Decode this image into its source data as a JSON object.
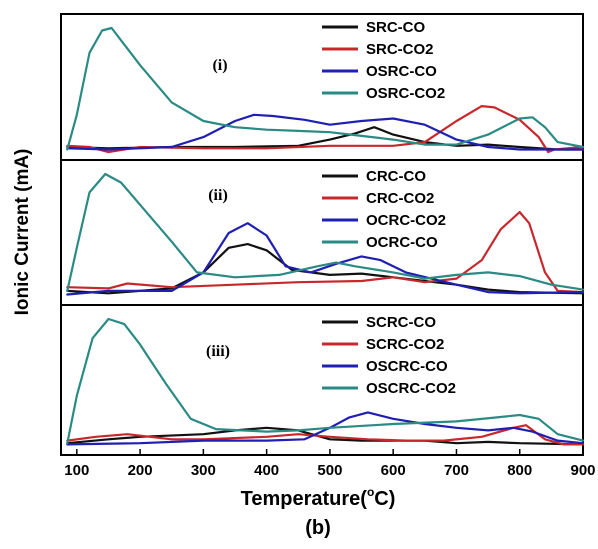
{
  "figure": {
    "ylabel": "Ionic Current (mA)",
    "xlabel_main": "Temperature(",
    "xlabel_sup": "o",
    "xlabel_end": "C)",
    "caption": "(b)"
  },
  "chart_data": {
    "type": "line",
    "xlim": [
      75,
      900
    ],
    "xticks": [
      100,
      200,
      300,
      400,
      500,
      600,
      700,
      800,
      900
    ],
    "colors": {
      "black": "#111111",
      "red": "#c8282b",
      "blue": "#1f1fb4",
      "teal": "#2a8a84"
    },
    "panels": [
      {
        "label": "(i)",
        "series": [
          {
            "name": "SRC-CO",
            "color": "black",
            "points": [
              [
                85,
                0.04
              ],
              [
                150,
                0.03
              ],
              [
                250,
                0.04
              ],
              [
                350,
                0.04
              ],
              [
                450,
                0.05
              ],
              [
                500,
                0.1
              ],
              [
                540,
                0.15
              ],
              [
                570,
                0.2
              ],
              [
                600,
                0.14
              ],
              [
                650,
                0.08
              ],
              [
                700,
                0.05
              ],
              [
                750,
                0.06
              ],
              [
                800,
                0.04
              ],
              [
                860,
                0.02
              ],
              [
                900,
                0.02
              ]
            ]
          },
          {
            "name": "SRC-CO2",
            "color": "red",
            "points": [
              [
                85,
                0.05
              ],
              [
                120,
                0.04
              ],
              [
                150,
                0.0
              ],
              [
                200,
                0.04
              ],
              [
                300,
                0.03
              ],
              [
                400,
                0.03
              ],
              [
                500,
                0.05
              ],
              [
                600,
                0.05
              ],
              [
                650,
                0.08
              ],
              [
                700,
                0.25
              ],
              [
                740,
                0.37
              ],
              [
                760,
                0.36
              ],
              [
                800,
                0.26
              ],
              [
                830,
                0.12
              ],
              [
                845,
                0.0
              ],
              [
                855,
                0.02
              ],
              [
                900,
                0.04
              ]
            ]
          },
          {
            "name": "OSRC-CO",
            "color": "blue",
            "points": [
              [
                85,
                0.03
              ],
              [
                150,
                0.02
              ],
              [
                250,
                0.04
              ],
              [
                300,
                0.12
              ],
              [
                350,
                0.25
              ],
              [
                380,
                0.3
              ],
              [
                410,
                0.29
              ],
              [
                460,
                0.26
              ],
              [
                500,
                0.22
              ],
              [
                550,
                0.25
              ],
              [
                600,
                0.27
              ],
              [
                650,
                0.22
              ],
              [
                700,
                0.1
              ],
              [
                750,
                0.04
              ],
              [
                800,
                0.02
              ],
              [
                900,
                0.02
              ]
            ]
          },
          {
            "name": "OSRC-CO2",
            "color": "teal",
            "points": [
              [
                85,
                0.02
              ],
              [
                100,
                0.3
              ],
              [
                120,
                0.8
              ],
              [
                140,
                0.98
              ],
              [
                155,
                1.0
              ],
              [
                170,
                0.9
              ],
              [
                200,
                0.7
              ],
              [
                250,
                0.4
              ],
              [
                300,
                0.25
              ],
              [
                350,
                0.2
              ],
              [
                400,
                0.18
              ],
              [
                450,
                0.17
              ],
              [
                500,
                0.16
              ],
              [
                550,
                0.13
              ],
              [
                600,
                0.1
              ],
              [
                650,
                0.06
              ],
              [
                700,
                0.06
              ],
              [
                750,
                0.14
              ],
              [
                800,
                0.27
              ],
              [
                820,
                0.28
              ],
              [
                840,
                0.2
              ],
              [
                860,
                0.08
              ],
              [
                900,
                0.04
              ]
            ]
          }
        ]
      },
      {
        "label": "(ii)",
        "series": [
          {
            "name": "CRC-CO",
            "color": "black",
            "points": [
              [
                85,
                0.05
              ],
              [
                150,
                0.03
              ],
              [
                250,
                0.07
              ],
              [
                300,
                0.2
              ],
              [
                340,
                0.4
              ],
              [
                370,
                0.43
              ],
              [
                400,
                0.38
              ],
              [
                440,
                0.22
              ],
              [
                500,
                0.18
              ],
              [
                550,
                0.19
              ],
              [
                600,
                0.16
              ],
              [
                650,
                0.13
              ],
              [
                700,
                0.1
              ],
              [
                750,
                0.06
              ],
              [
                800,
                0.04
              ],
              [
                900,
                0.03
              ]
            ]
          },
          {
            "name": "CRC-CO2",
            "color": "red",
            "points": [
              [
                85,
                0.08
              ],
              [
                150,
                0.07
              ],
              [
                180,
                0.11
              ],
              [
                250,
                0.08
              ],
              [
                350,
                0.1
              ],
              [
                450,
                0.12
              ],
              [
                550,
                0.13
              ],
              [
                600,
                0.16
              ],
              [
                650,
                0.12
              ],
              [
                700,
                0.15
              ],
              [
                740,
                0.3
              ],
              [
                770,
                0.55
              ],
              [
                800,
                0.69
              ],
              [
                815,
                0.6
              ],
              [
                840,
                0.2
              ],
              [
                860,
                0.05
              ],
              [
                900,
                0.04
              ]
            ]
          },
          {
            "name": "OCRC-CO2",
            "color": "blue",
            "points": [
              [
                85,
                0.02
              ],
              [
                150,
                0.05
              ],
              [
                250,
                0.05
              ],
              [
                300,
                0.2
              ],
              [
                340,
                0.52
              ],
              [
                370,
                0.6
              ],
              [
                400,
                0.5
              ],
              [
                430,
                0.25
              ],
              [
                470,
                0.2
              ],
              [
                510,
                0.27
              ],
              [
                550,
                0.33
              ],
              [
                580,
                0.3
              ],
              [
                620,
                0.2
              ],
              [
                700,
                0.1
              ],
              [
                750,
                0.04
              ],
              [
                800,
                0.03
              ],
              [
                900,
                0.04
              ]
            ]
          },
          {
            "name": "OCRC-CO",
            "color": "teal",
            "points": [
              [
                85,
                0.05
              ],
              [
                100,
                0.4
              ],
              [
                120,
                0.85
              ],
              [
                145,
                1.0
              ],
              [
                170,
                0.93
              ],
              [
                200,
                0.75
              ],
              [
                250,
                0.45
              ],
              [
                290,
                0.2
              ],
              [
                350,
                0.16
              ],
              [
                420,
                0.18
              ],
              [
                480,
                0.25
              ],
              [
                510,
                0.28
              ],
              [
                540,
                0.25
              ],
              [
                600,
                0.2
              ],
              [
                650,
                0.15
              ],
              [
                700,
                0.18
              ],
              [
                750,
                0.2
              ],
              [
                800,
                0.17
              ],
              [
                850,
                0.1
              ],
              [
                900,
                0.06
              ]
            ]
          }
        ]
      },
      {
        "label": "(iii)",
        "series": [
          {
            "name": "SCRC-CO",
            "color": "black",
            "points": [
              [
                85,
                0.03
              ],
              [
                150,
                0.06
              ],
              [
                200,
                0.08
              ],
              [
                300,
                0.1
              ],
              [
                350,
                0.13
              ],
              [
                400,
                0.15
              ],
              [
                450,
                0.13
              ],
              [
                500,
                0.06
              ],
              [
                550,
                0.05
              ],
              [
                600,
                0.05
              ],
              [
                650,
                0.05
              ],
              [
                700,
                0.03
              ],
              [
                750,
                0.04
              ],
              [
                800,
                0.03
              ],
              [
                900,
                0.02
              ]
            ]
          },
          {
            "name": "SCRC-CO2",
            "color": "red",
            "points": [
              [
                85,
                0.05
              ],
              [
                130,
                0.08
              ],
              [
                180,
                0.1
              ],
              [
                250,
                0.06
              ],
              [
                300,
                0.06
              ],
              [
                400,
                0.08
              ],
              [
                450,
                0.1
              ],
              [
                500,
                0.08
              ],
              [
                560,
                0.06
              ],
              [
                620,
                0.05
              ],
              [
                680,
                0.05
              ],
              [
                740,
                0.08
              ],
              [
                790,
                0.15
              ],
              [
                810,
                0.17
              ],
              [
                840,
                0.06
              ],
              [
                870,
                0.02
              ],
              [
                900,
                0.02
              ]
            ]
          },
          {
            "name": "OSCRC-CO",
            "color": "blue",
            "points": [
              [
                85,
                0.02
              ],
              [
                200,
                0.03
              ],
              [
                300,
                0.05
              ],
              [
                400,
                0.05
              ],
              [
                460,
                0.06
              ],
              [
                500,
                0.15
              ],
              [
                530,
                0.23
              ],
              [
                560,
                0.27
              ],
              [
                600,
                0.22
              ],
              [
                650,
                0.18
              ],
              [
                700,
                0.15
              ],
              [
                750,
                0.13
              ],
              [
                790,
                0.15
              ],
              [
                820,
                0.12
              ],
              [
                860,
                0.05
              ],
              [
                900,
                0.03
              ]
            ]
          },
          {
            "name": "OSCRC-CO2",
            "color": "teal",
            "points": [
              [
                85,
                0.03
              ],
              [
                100,
                0.4
              ],
              [
                125,
                0.85
              ],
              [
                150,
                1.0
              ],
              [
                175,
                0.96
              ],
              [
                200,
                0.8
              ],
              [
                240,
                0.5
              ],
              [
                280,
                0.22
              ],
              [
                320,
                0.14
              ],
              [
                400,
                0.12
              ],
              [
                450,
                0.13
              ],
              [
                500,
                0.15
              ],
              [
                600,
                0.18
              ],
              [
                700,
                0.2
              ],
              [
                760,
                0.23
              ],
              [
                800,
                0.25
              ],
              [
                830,
                0.22
              ],
              [
                860,
                0.1
              ],
              [
                900,
                0.05
              ]
            ]
          }
        ]
      }
    ]
  }
}
